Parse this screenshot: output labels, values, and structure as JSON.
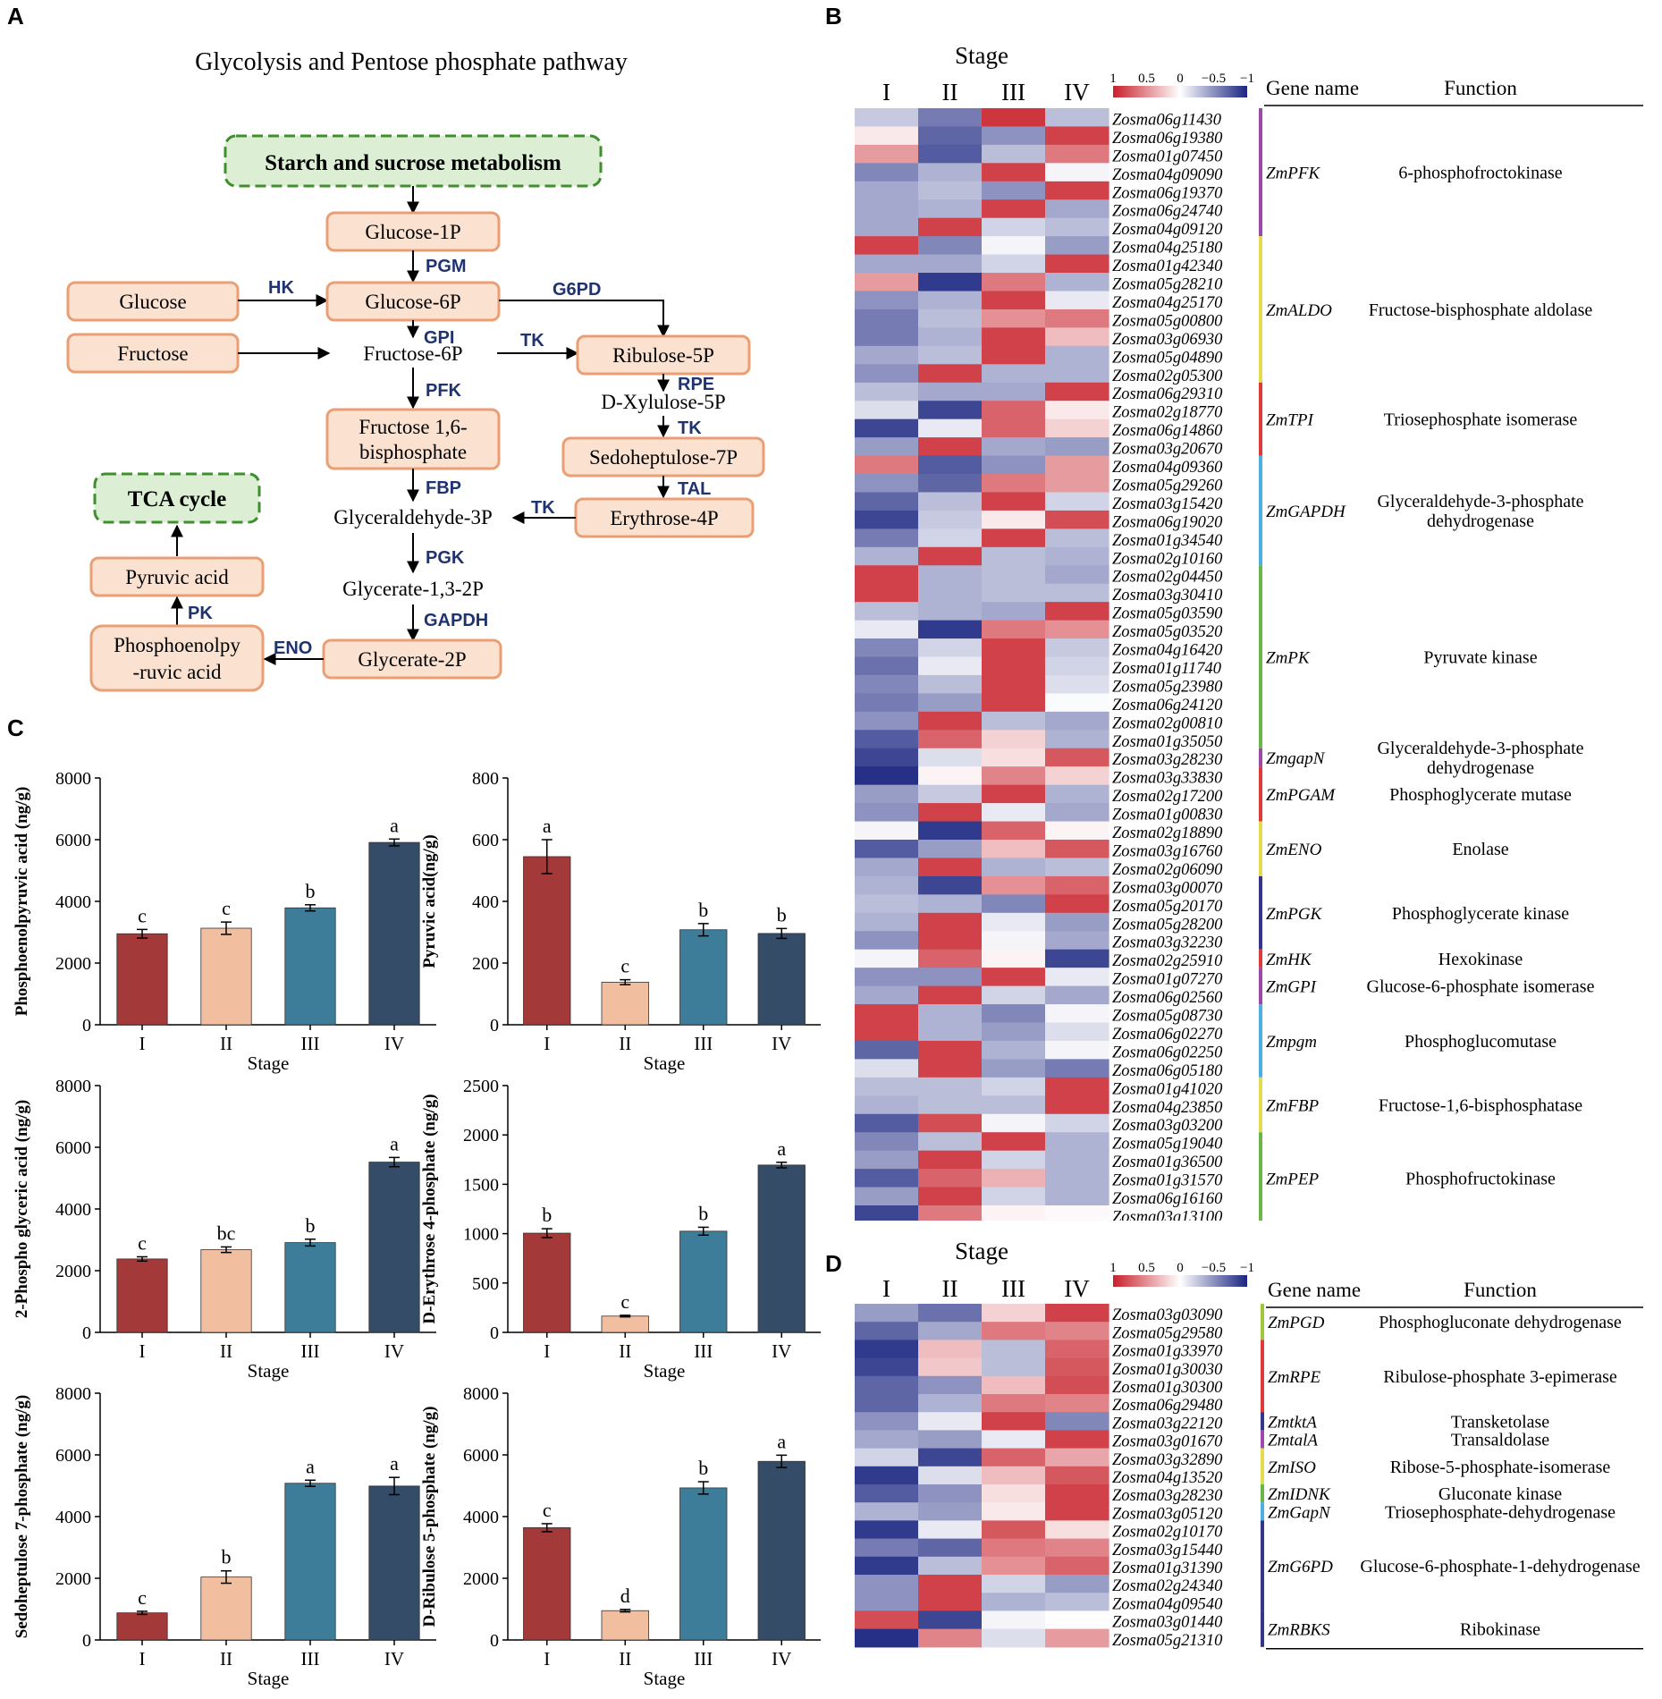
{
  "panels": {
    "A": {
      "label": "A",
      "title": "Glycolysis and Pentose phosphate pathway",
      "nodes": {
        "starch": "Starch and sucrose metabolism",
        "glc1p": "Glucose-1P",
        "glucose": "Glucose",
        "glc6p": "Glucose-6P",
        "fructose": "Fructose",
        "fru6p": "Fructose-6P",
        "ribulose": "Ribulose-5P",
        "xylulose": "D-Xylulose-5P",
        "fbp1": "Fructose 1,6-",
        "fbp2": "bisphosphate",
        "sedo": "Sedoheptulose-7P",
        "tca": "TCA cycle",
        "g3p": "Glyceraldehyde-3P",
        "erythrose": "Erythrose-4P",
        "pyruvate": "Pyruvic acid",
        "g13p": "Glycerate-1,3-2P",
        "pep1": "Phosphoenolpy",
        "pep2": "-ruvic acid",
        "g2p": "Glycerate-2P"
      },
      "enzymes": {
        "pgm": "PGM",
        "hk": "HK",
        "g6pd": "G6PD",
        "gpi": "GPI",
        "tk1": "TK",
        "pfk": "PFK",
        "rpe": "RPE",
        "tk2": "TK",
        "fbp": "FBP",
        "tal": "TAL",
        "tk3": "TK",
        "pgk": "PGK",
        "pk": "PK",
        "gapdh": "GAPDH",
        "eno": "ENO"
      }
    },
    "B": {
      "label": "B",
      "stage_title": "Stage",
      "stages": [
        "I",
        "II",
        "III",
        "IV"
      ],
      "legend": {
        "ticks": [
          "1",
          "0.5",
          "0",
          "−0.5",
          "−1"
        ],
        "colors": {
          "high": "#c8202a",
          "mid": "#ffffff",
          "low": "#1a2580"
        }
      },
      "header": {
        "gene_name": "Gene name",
        "function": "Function"
      },
      "genes": [
        [
          "Zosma06g11430",
          -0.25,
          -0.6,
          0.9,
          -0.3
        ],
        [
          "Zosma06g19380",
          0.1,
          -0.7,
          -0.5,
          0.85
        ],
        [
          "Zosma01g07450",
          0.45,
          -0.75,
          -0.3,
          0.6
        ],
        [
          "Zosma04g09090",
          -0.55,
          -0.35,
          0.85,
          -0.05
        ],
        [
          "Zosma06g19370",
          -0.4,
          -0.3,
          -0.5,
          0.85
        ],
        [
          "Zosma06g24740",
          -0.4,
          -0.35,
          0.85,
          -0.4
        ],
        [
          "Zosma04g09120",
          -0.4,
          0.85,
          -0.2,
          -0.3
        ],
        [
          "Zosma04g25180",
          0.85,
          -0.55,
          -0.05,
          -0.45
        ],
        [
          "Zosma01g42340",
          -0.4,
          -0.4,
          -0.2,
          0.85
        ],
        [
          "Zosma05g28210",
          0.45,
          -0.9,
          0.6,
          -0.35
        ],
        [
          "Zosma04g25170",
          -0.5,
          -0.35,
          0.85,
          -0.1
        ],
        [
          "Zosma05g00800",
          -0.6,
          -0.3,
          0.5,
          0.6
        ],
        [
          "Zosma03g06930",
          -0.6,
          -0.35,
          0.85,
          0.3
        ],
        [
          "Zosma05g04890",
          -0.4,
          -0.3,
          0.85,
          -0.35
        ],
        [
          "Zosma02g05300",
          -0.5,
          0.85,
          -0.35,
          -0.35
        ],
        [
          "Zosma06g29310",
          -0.3,
          -0.4,
          -0.4,
          0.85
        ],
        [
          "Zosma02g18770",
          -0.15,
          -0.85,
          0.7,
          0.1
        ],
        [
          "Zosma06g14860",
          -0.85,
          -0.1,
          0.7,
          0.2
        ],
        [
          "Zosma03g20670",
          -0.45,
          0.85,
          -0.4,
          -0.45
        ],
        [
          "Zosma04g09360",
          0.6,
          -0.75,
          -0.5,
          0.45
        ],
        [
          "Zosma05g29260",
          -0.5,
          -0.7,
          0.6,
          0.45
        ],
        [
          "Zosma03g15420",
          -0.7,
          -0.3,
          0.85,
          -0.2
        ],
        [
          "Zosma06g19020",
          -0.85,
          -0.25,
          0.1,
          0.8
        ],
        [
          "Zosma01g34540",
          -0.6,
          -0.2,
          0.85,
          -0.3
        ],
        [
          "Zosma02g10160",
          -0.35,
          0.85,
          -0.3,
          -0.35
        ],
        [
          "Zosma02g04450",
          0.85,
          -0.35,
          -0.3,
          -0.4
        ],
        [
          "Zosma03g30410",
          0.85,
          -0.35,
          -0.3,
          -0.3
        ],
        [
          "Zosma05g03590",
          -0.3,
          -0.35,
          -0.4,
          0.85
        ],
        [
          "Zosma05g03520",
          -0.1,
          -0.9,
          0.6,
          0.5
        ],
        [
          "Zosma04g16420",
          -0.55,
          -0.2,
          0.85,
          -0.25
        ],
        [
          "Zosma01g11740",
          -0.65,
          -0.1,
          0.85,
          -0.2
        ],
        [
          "Zosma05g23980",
          -0.55,
          -0.3,
          0.85,
          -0.15
        ],
        [
          "Zosma06g24120",
          -0.6,
          -0.45,
          0.85,
          -0.02
        ],
        [
          "Zosma02g00810",
          -0.5,
          0.85,
          -0.3,
          -0.4
        ],
        [
          "Zosma01g35050",
          -0.75,
          0.7,
          0.2,
          -0.35
        ],
        [
          "Zosma03g28230",
          -0.85,
          -0.15,
          0.15,
          0.75
        ],
        [
          "Zosma03g33830",
          -0.95,
          0.05,
          0.55,
          0.2
        ],
        [
          "Zosma02g17200",
          -0.45,
          -0.25,
          0.85,
          -0.35
        ],
        [
          "Zosma01g00830",
          -0.5,
          0.85,
          -0.1,
          -0.4
        ],
        [
          "Zosma02g18890",
          -0.05,
          -0.9,
          0.7,
          0.05
        ],
        [
          "Zosma03g16760",
          -0.75,
          -0.45,
          0.3,
          0.75
        ],
        [
          "Zosma02g06090",
          -0.4,
          0.85,
          -0.35,
          -0.3
        ],
        [
          "Zosma03g00070",
          -0.35,
          -0.85,
          0.5,
          0.7
        ],
        [
          "Zosma05g20170",
          -0.3,
          -0.35,
          -0.55,
          0.85
        ],
        [
          "Zosma05g28200",
          -0.35,
          0.85,
          -0.1,
          -0.45
        ],
        [
          "Zosma03g32230",
          -0.5,
          0.85,
          -0.05,
          -0.4
        ],
        [
          "Zosma02g25910",
          -0.05,
          0.7,
          0.05,
          -0.85
        ],
        [
          "Zosma01g07270",
          -0.5,
          -0.5,
          0.85,
          -0.1
        ],
        [
          "Zosma06g02560",
          -0.4,
          0.85,
          -0.2,
          -0.4
        ],
        [
          "Zosma05g08730",
          0.85,
          -0.35,
          -0.55,
          -0.05
        ],
        [
          "Zosma06g02270",
          0.85,
          -0.35,
          -0.45,
          -0.15
        ],
        [
          "Zosma06g02250",
          -0.7,
          0.85,
          -0.35,
          -0.05
        ],
        [
          "Zosma06g05180",
          -0.15,
          0.85,
          -0.45,
          -0.6
        ],
        [
          "Zosma01g41020",
          -0.3,
          -0.3,
          -0.2,
          0.85
        ],
        [
          "Zosma04g23850",
          -0.35,
          -0.3,
          -0.3,
          0.85
        ],
        [
          "Zosma03g03200",
          -0.75,
          0.8,
          -0.05,
          -0.2
        ],
        [
          "Zosma05g19040",
          -0.55,
          -0.3,
          0.85,
          -0.35
        ],
        [
          "Zosma01g36500",
          -0.45,
          0.85,
          -0.2,
          -0.35
        ],
        [
          "Zosma01g31570",
          -0.75,
          0.7,
          0.35,
          -0.35
        ],
        [
          "Zosma06g16160",
          -0.45,
          0.85,
          -0.2,
          -0.35
        ],
        [
          "Zosma03g13100",
          -0.85,
          0.6,
          0.05,
          0.03
        ]
      ],
      "groups": [
        {
          "gene": "ZmPFK",
          "func1": "6-phosphofroctokinase",
          "func2": "",
          "rows": 7,
          "color": "#9b4aa8"
        },
        {
          "gene": "ZmALDO",
          "func1": "Fructose-bisphosphate aldolase",
          "func2": "",
          "rows": 8,
          "color": "#e3dc4e"
        },
        {
          "gene": "ZmTPI",
          "func1": "Triosephosphate isomerase",
          "func2": "",
          "rows": 4,
          "color": "#dd3a3a"
        },
        {
          "gene": "ZmGAPDH",
          "func1": "Glyceraldehyde-3-phosphate",
          "func2": "dehydrogenase",
          "rows": 6,
          "color": "#4bb0df"
        },
        {
          "gene": "ZmPK",
          "func1": "Pyruvate kinase",
          "func2": "",
          "rows": 10,
          "color": "#6ab64a"
        },
        {
          "gene": "ZmgapN",
          "func1": "Glyceraldehyde-3-phosphate",
          "func2": "dehydrogenase",
          "rows": 1,
          "color": "#9b4aa8"
        },
        {
          "gene": "ZmPGAM",
          "func1": "Phosphoglycerate mutase",
          "func2": "",
          "rows": 3,
          "color": "#dd3a3a"
        },
        {
          "gene": "ZmENO",
          "func1": "Enolase",
          "func2": "",
          "rows": 3,
          "color": "#e3dc4e"
        },
        {
          "gene": "ZmPGK",
          "func1": "Phosphoglycerate kinase",
          "func2": "",
          "rows": 4,
          "color": "#33348a"
        },
        {
          "gene": "ZmHK",
          "func1": "Hexokinase",
          "func2": "",
          "rows": 1,
          "color": "#dd3a3a"
        },
        {
          "gene": "ZmGPI",
          "func1": "Glucose-6-phosphate isomerase",
          "func2": "",
          "rows": 2,
          "color": "#9b4aa8"
        },
        {
          "gene": "Zmpgm",
          "func1": "Phosphoglucomutase",
          "func2": "",
          "rows": 4,
          "color": "#4bb0df"
        },
        {
          "gene": "ZmFBP",
          "func1": "Fructose-1,6-bisphosphatase",
          "func2": "",
          "rows": 3,
          "color": "#e3dc4e"
        },
        {
          "gene": "ZmPEP",
          "func1": "Phosphofructokinase",
          "func2": "",
          "rows": 5,
          "color": "#6ab64a"
        }
      ]
    },
    "C": {
      "label": "C"
    },
    "D": {
      "label": "D",
      "stage_title": "Stage",
      "stages": [
        "I",
        "II",
        "III",
        "IV"
      ],
      "legend": {
        "ticks": [
          "1",
          "0.5",
          "0",
          "−0.5",
          "−1"
        ]
      },
      "header": {
        "gene_name": "Gene name",
        "function": "Function"
      },
      "genes": [
        [
          "Zosma03g03090",
          -0.45,
          -0.65,
          0.2,
          0.85
        ],
        [
          "Zosma05g29580",
          -0.7,
          -0.4,
          0.6,
          0.55
        ],
        [
          "Zosma01g33970",
          -0.9,
          0.3,
          -0.3,
          0.7
        ],
        [
          "Zosma01g30030",
          -0.85,
          0.25,
          -0.3,
          0.75
        ],
        [
          "Zosma01g30300",
          -0.7,
          -0.5,
          0.3,
          0.8
        ],
        [
          "Zosma06g29480",
          -0.7,
          -0.35,
          0.6,
          0.55
        ],
        [
          "Zosma03g22120",
          -0.5,
          -0.1,
          0.85,
          -0.55
        ],
        [
          "Zosma03g01670",
          -0.4,
          -0.45,
          -0.1,
          0.85
        ],
        [
          "Zosma03g32890",
          -0.2,
          -0.85,
          0.7,
          0.4
        ],
        [
          "Zosma04g13520",
          -0.9,
          -0.15,
          0.3,
          0.75
        ],
        [
          "Zosma03g28230",
          -0.75,
          -0.5,
          0.15,
          0.85
        ],
        [
          "Zosma03g05120",
          -0.35,
          -0.45,
          0.1,
          0.85
        ],
        [
          "Zosma02g10170",
          -0.9,
          -0.1,
          0.75,
          0.15
        ],
        [
          "Zosma03g15440",
          -0.6,
          -0.7,
          0.6,
          0.55
        ],
        [
          "Zosma01g31390",
          -0.9,
          -0.3,
          0.5,
          0.7
        ],
        [
          "Zosma02g24340",
          -0.5,
          0.85,
          -0.2,
          -0.45
        ],
        [
          "Zosma04g09540",
          -0.5,
          0.85,
          -0.35,
          -0.3
        ],
        [
          "Zosma03g01440",
          0.8,
          -0.85,
          -0.05,
          0.01
        ],
        [
          "Zosma05g21310",
          -0.95,
          0.55,
          -0.15,
          0.45
        ]
      ],
      "groups": [
        {
          "gene": "ZmPGD",
          "func1": "Phosphogluconate dehydrogenase",
          "rows": 2,
          "color": "#9fc73c"
        },
        {
          "gene": "ZmRPE",
          "func1": "Ribulose-phosphate 3-epimerase",
          "rows": 4,
          "color": "#dd3a3a"
        },
        {
          "gene": "ZmtktA",
          "func1": "Transketolase",
          "rows": 1,
          "color": "#33348a"
        },
        {
          "gene": "ZmtalA",
          "func1": "Transaldolase",
          "rows": 1,
          "color": "#9b4aa8"
        },
        {
          "gene": "ZmISO",
          "func1": "Ribose-5-phosphate-isomerase",
          "rows": 2,
          "color": "#e3dc4e"
        },
        {
          "gene": "ZmIDNK",
          "func1": "Gluconate kinase",
          "rows": 1,
          "color": "#6ab64a"
        },
        {
          "gene": "ZmGapN",
          "func1": "Triosephosphate-dehydrogenase",
          "rows": 1,
          "color": "#4bb0df"
        },
        {
          "gene": "ZmG6PD",
          "func1": "Glucose-6-phosphate-1-dehydrogenase",
          "rows": 5,
          "color": "#33348a"
        },
        {
          "gene": "ZmRBKS",
          "func1": "Ribokinase",
          "rows": 2,
          "color": "#33348a"
        }
      ]
    }
  },
  "chart_data": [
    {
      "type": "bar",
      "title": "",
      "ylabel": "Phosphoenolpyruvic acid (ng/g)",
      "xlabel": "Stage",
      "categories": [
        "I",
        "II",
        "III",
        "IV"
      ],
      "values": [
        2950,
        3130,
        3790,
        5910
      ],
      "errors": [
        140,
        200,
        100,
        110
      ],
      "letters": [
        "c",
        "c",
        "b",
        "a"
      ],
      "ylim": [
        0,
        8000
      ],
      "yticks": [
        0,
        2000,
        4000,
        6000,
        8000
      ]
    },
    {
      "type": "bar",
      "title": "",
      "ylabel": "Pyruvic acid(ng/g)",
      "xlabel": "Stage",
      "categories": [
        "I",
        "II",
        "III",
        "IV"
      ],
      "values": [
        545,
        138,
        308,
        296
      ],
      "errors": [
        55,
        8,
        20,
        16
      ],
      "letters": [
        "a",
        "c",
        "b",
        "b"
      ],
      "ylim": [
        0,
        800
      ],
      "yticks": [
        0,
        200,
        400,
        600,
        800
      ]
    },
    {
      "type": "bar",
      "title": "",
      "ylabel": "2-Phospho glyceric acid (ng/g)",
      "xlabel": "Stage",
      "categories": [
        "I",
        "II",
        "III",
        "IV"
      ],
      "values": [
        2380,
        2680,
        2910,
        5520
      ],
      "errors": [
        70,
        90,
        110,
        150
      ],
      "letters": [
        "c",
        "bc",
        "b",
        "a"
      ],
      "ylim": [
        0,
        8000
      ],
      "yticks": [
        0,
        2000,
        4000,
        6000,
        8000
      ]
    },
    {
      "type": "bar",
      "title": "",
      "ylabel": "D-Erythrose 4-phosphate (ng/g)",
      "xlabel": "Stage",
      "categories": [
        "I",
        "II",
        "III",
        "IV"
      ],
      "values": [
        1005,
        165,
        1025,
        1695
      ],
      "errors": [
        45,
        8,
        40,
        28
      ],
      "letters": [
        "b",
        "c",
        "b",
        "a"
      ],
      "ylim": [
        0,
        2500
      ],
      "yticks": [
        0,
        500,
        1000,
        1500,
        2000,
        2500
      ]
    },
    {
      "type": "bar",
      "title": "",
      "ylabel": "Sedoheptulose 7-phosphate (ng/g)",
      "xlabel": "Stage",
      "categories": [
        "I",
        "II",
        "III",
        "IV"
      ],
      "values": [
        880,
        2040,
        5080,
        4990
      ],
      "errors": [
        50,
        200,
        100,
        280
      ],
      "letters": [
        "c",
        "b",
        "a",
        "a"
      ],
      "ylim": [
        0,
        8000
      ],
      "yticks": [
        0,
        2000,
        4000,
        6000,
        8000
      ]
    },
    {
      "type": "bar",
      "title": "",
      "ylabel": "D-Ribulose 5-phosphate (ng/g)",
      "xlabel": "Stage",
      "categories": [
        "I",
        "II",
        "III",
        "IV"
      ],
      "values": [
        3640,
        950,
        4930,
        5790
      ],
      "errors": [
        130,
        40,
        200,
        200
      ],
      "letters": [
        "c",
        "d",
        "b",
        "a"
      ],
      "ylim": [
        0,
        8000
      ],
      "yticks": [
        0,
        2000,
        4000,
        6000,
        8000
      ]
    }
  ],
  "bar_colors": [
    "#a4393a",
    "#f1bea0",
    "#3d7d9a",
    "#354c68"
  ]
}
